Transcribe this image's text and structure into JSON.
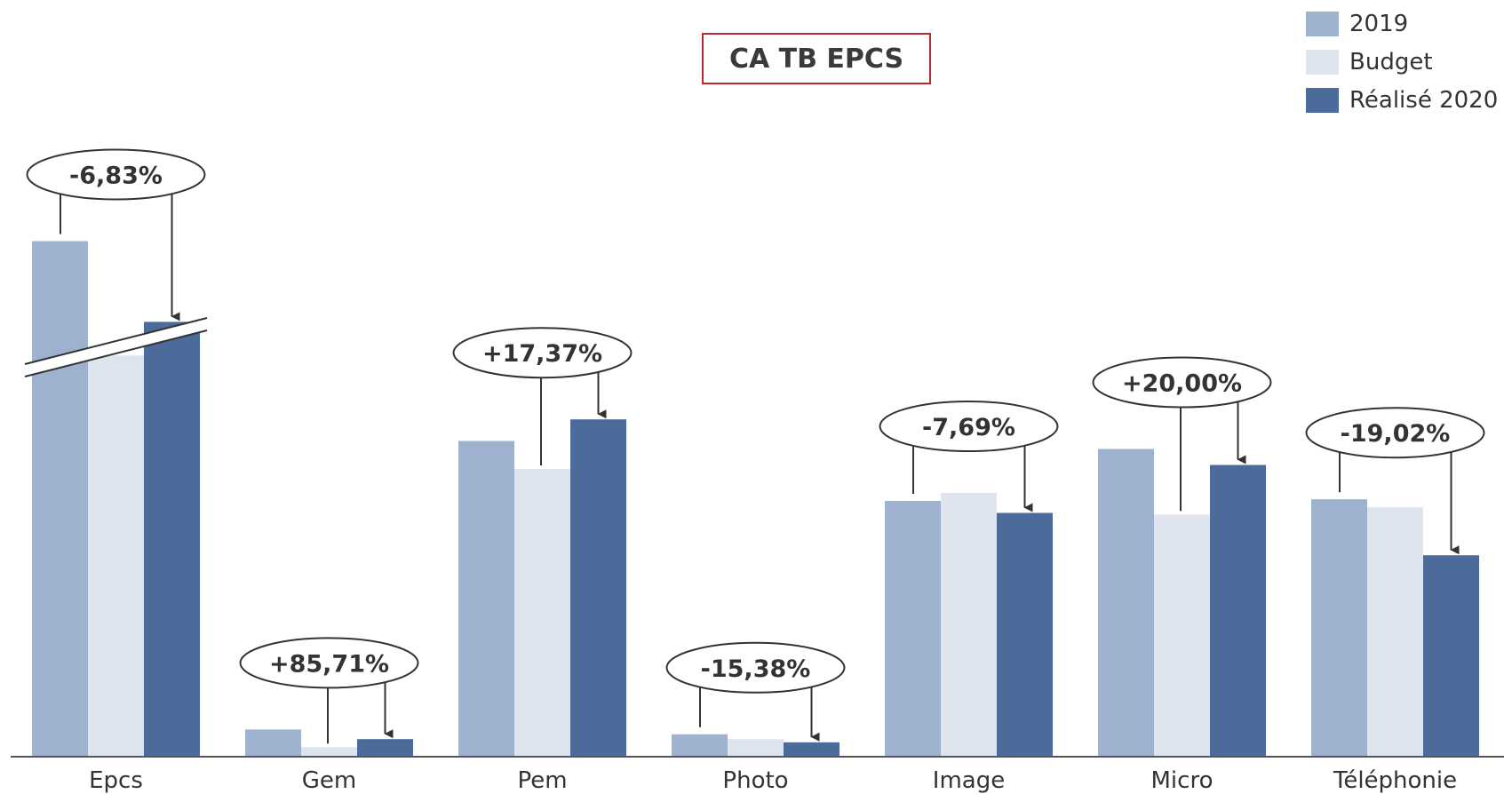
{
  "chart_data": {
    "type": "bar",
    "title": "CA TB EPCS",
    "categories": [
      "Epcs",
      "Gem",
      "Pem",
      "Photo",
      "Image",
      "Micro",
      "Téléphonie"
    ],
    "series": [
      {
        "name": "2019",
        "color": "#9eb1cf",
        "values": [
          645,
          34,
          395,
          28,
          320,
          385,
          322
        ]
      },
      {
        "name": "Budget",
        "color": "#dfe5ef",
        "values": [
          502,
          12,
          360,
          22,
          330,
          303,
          312
        ]
      },
      {
        "name": "Réalisé 2020",
        "color": "#4b6b9a",
        "values": [
          544,
          22,
          422,
          18,
          305,
          365,
          252
        ]
      }
    ],
    "variations": [
      "-6,83%",
      "+85,71%",
      "+17,37%",
      "-15,38%",
      "-7,69%",
      "+20,00%",
      "-19,02%"
    ],
    "axis_break": "Epcs",
    "ylim": [
      0,
      700
    ],
    "legend_position": "top-right",
    "grid": false
  }
}
